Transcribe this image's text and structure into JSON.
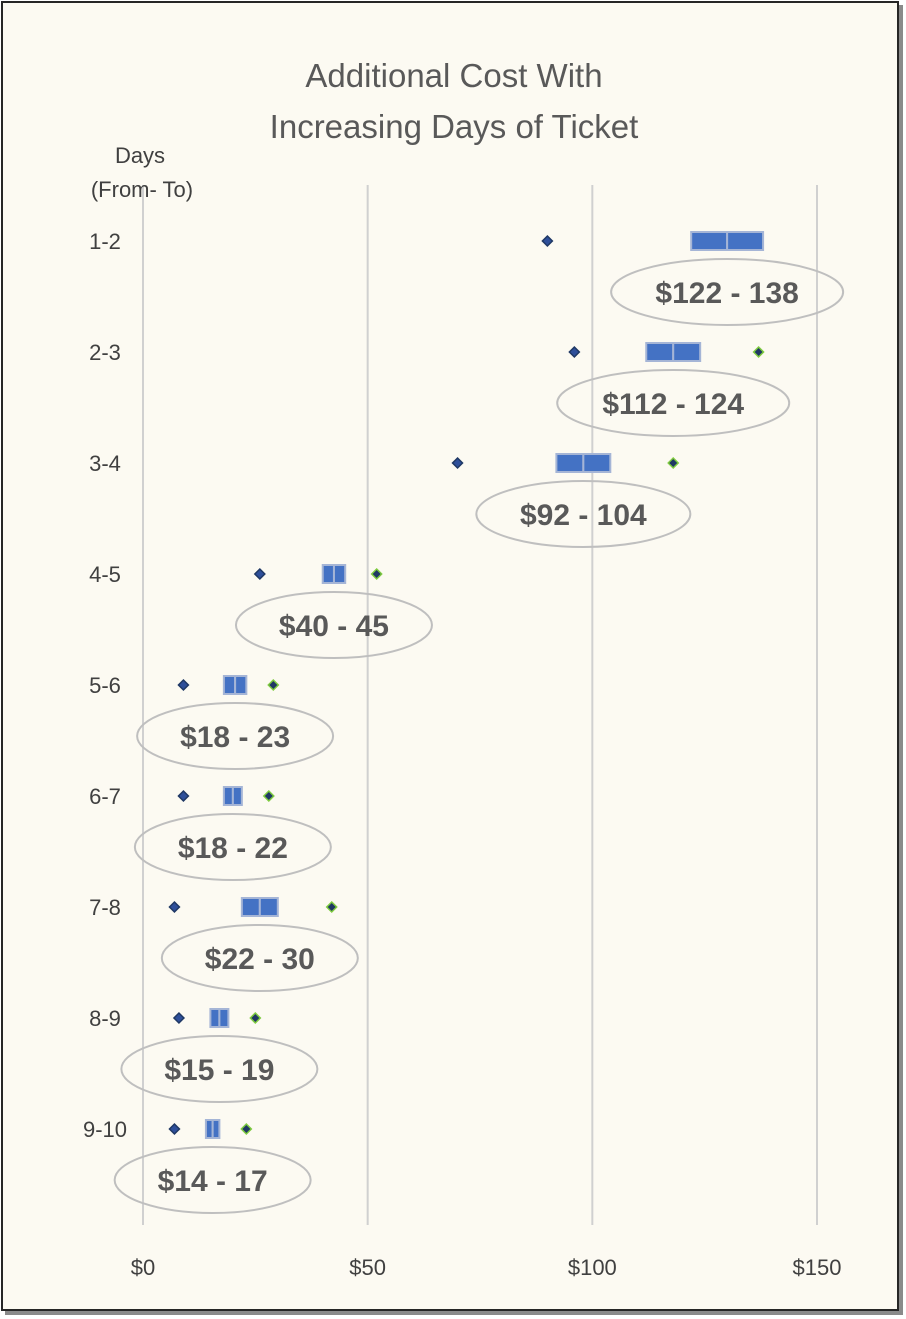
{
  "chart_data": {
    "type": "scatter",
    "title_lines": [
      "Additional Cost With",
      "Increasing Days of Ticket"
    ],
    "ylabel_lines": [
      "Days",
      "(From- To)"
    ],
    "categories": [
      "1-2",
      "2-3",
      "3-4",
      "4-5",
      "5-6",
      "6-7",
      "7-8",
      "8-9",
      "9-10"
    ],
    "x_ticks": [
      0,
      50,
      100,
      150
    ],
    "x_tick_labels": [
      "$0",
      "$50",
      "$100",
      "$150"
    ],
    "xlim": [
      0,
      150
    ],
    "grid": true,
    "low_marker": [
      90,
      96,
      70,
      26,
      9,
      9,
      7,
      8,
      7
    ],
    "high_marker": [
      null,
      137,
      118,
      52,
      29,
      28,
      42,
      25,
      23
    ],
    "range_low": [
      122,
      112,
      92,
      40,
      18,
      18,
      22,
      15,
      14
    ],
    "range_high": [
      138,
      124,
      104,
      45,
      23,
      22,
      30,
      19,
      17
    ],
    "range_labels": [
      "$122 - 138",
      "$112 - 124",
      "$92 - 104",
      "$40 - 45",
      "$18 - 23",
      "$18 - 22",
      "$22 - 30",
      "$15 - 19",
      "$14 - 17"
    ],
    "colors": {
      "background": "#fcfaf2",
      "range_box": "#4472c4",
      "range_box_border": "#a5b5d6",
      "low_marker": "#2e4f9a",
      "high_marker_fill": "#1f3864",
      "high_marker_border": "#7ecb3f",
      "grid": "#d0d0d0",
      "label_ellipse": "#bfbfbf"
    }
  }
}
